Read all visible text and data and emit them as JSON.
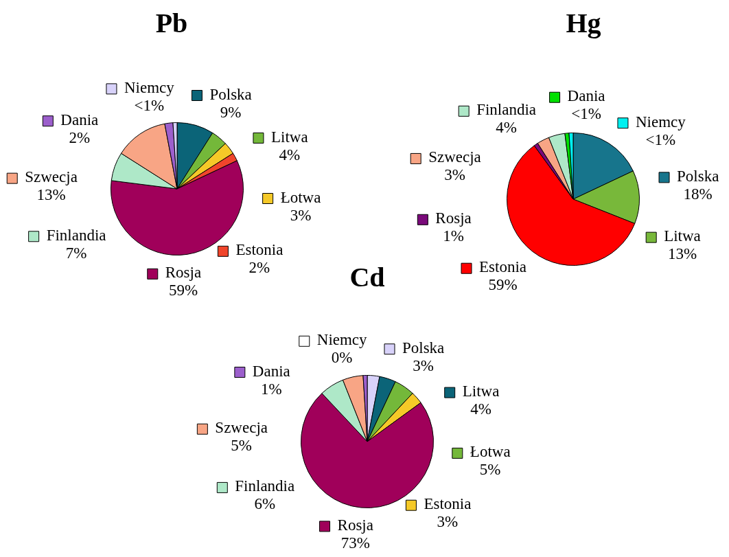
{
  "chart_data": [
    {
      "type": "pie",
      "title": "Pb",
      "legend": "top left",
      "categories": [
        "Polska",
        "Litwa",
        "Łotwa",
        "Estonia",
        "Rosja",
        "Finlandia",
        "Szwecja",
        "Dania",
        "Niemcy"
      ],
      "values": [
        9,
        4,
        3,
        2,
        59,
        7,
        13,
        2,
        1
      ],
      "colors": [
        "#0b6478",
        "#74b83a",
        "#f5c928",
        "#f0452b",
        "#a0005a",
        "#aee8c8",
        "#f8a585",
        "#9c5fcc",
        "#d8d2fa"
      ],
      "value_labels": [
        "9%",
        "4%",
        "3%",
        "2%",
        "59%",
        "7%",
        "13%",
        "2%",
        "<1%"
      ]
    },
    {
      "type": "pie",
      "title": "Hg",
      "legend": "top left",
      "categories": [
        "Polska",
        "Litwa",
        "Estonia",
        "Rosja",
        "Szwecja",
        "Finlandia",
        "Dania",
        "Niemcy"
      ],
      "values": [
        18,
        13,
        59,
        1,
        3,
        4,
        1,
        1
      ],
      "colors": [
        "#17758c",
        "#78b83a",
        "#ff0000",
        "#7a0a7a",
        "#f8a585",
        "#aee8c8",
        "#00e000",
        "#00f0f0"
      ],
      "value_labels": [
        "18%",
        "13%",
        "59%",
        "1%",
        "3%",
        "4%",
        "<1%",
        "<1%"
      ]
    },
    {
      "type": "pie",
      "title": "Cd",
      "legend": "top left",
      "categories": [
        "Polska",
        "Litwa",
        "Łotwa",
        "Estonia",
        "Rosja",
        "Finlandia",
        "Szwecja",
        "Dania",
        "Niemcy"
      ],
      "values": [
        3,
        4,
        5,
        3,
        73,
        6,
        5,
        1,
        0
      ],
      "colors": [
        "#d8d2fa",
        "#0b6478",
        "#74b83a",
        "#f5c928",
        "#a0005a",
        "#aee8c8",
        "#f8a585",
        "#9c5fcc",
        "#ffffff"
      ],
      "value_labels": [
        "3%",
        "4%",
        "5%",
        "3%",
        "73%",
        "6%",
        "5%",
        "1%",
        "0%"
      ]
    }
  ]
}
